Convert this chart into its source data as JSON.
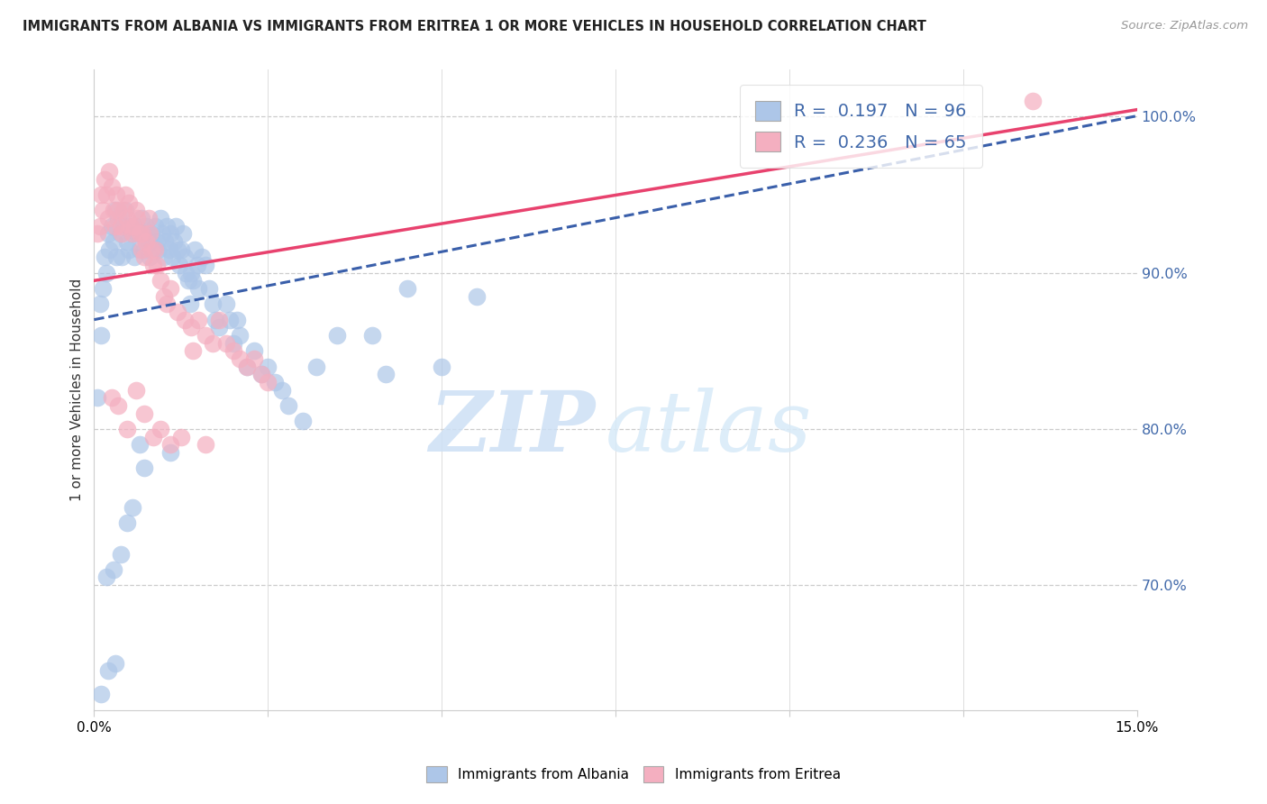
{
  "title": "IMMIGRANTS FROM ALBANIA VS IMMIGRANTS FROM ERITREA 1 OR MORE VEHICLES IN HOUSEHOLD CORRELATION CHART",
  "source": "Source: ZipAtlas.com",
  "ylabel": "1 or more Vehicles in Household",
  "xlim": [
    0.0,
    15.0
  ],
  "ylim": [
    62.0,
    103.0
  ],
  "albania_R": 0.197,
  "albania_N": 96,
  "eritrea_R": 0.236,
  "eritrea_N": 65,
  "albania_color": "#adc6e8",
  "eritrea_color": "#f4afc0",
  "albania_line_color": "#3a5faa",
  "eritrea_line_color": "#e8426e",
  "watermark_zip": "ZIP",
  "watermark_atlas": "atlas",
  "legend_albania_label": "Immigrants from Albania",
  "legend_eritrea_label": "Immigrants from Eritrea",
  "ytick_vals": [
    70.0,
    80.0,
    90.0,
    100.0
  ],
  "xtick_vals": [
    0.0,
    2.5,
    5.0,
    7.5,
    10.0,
    12.5,
    15.0
  ],
  "albania_x": [
    0.05,
    0.08,
    0.1,
    0.12,
    0.15,
    0.18,
    0.2,
    0.22,
    0.25,
    0.28,
    0.3,
    0.32,
    0.35,
    0.38,
    0.4,
    0.42,
    0.45,
    0.48,
    0.5,
    0.52,
    0.55,
    0.58,
    0.6,
    0.62,
    0.65,
    0.68,
    0.7,
    0.72,
    0.75,
    0.78,
    0.8,
    0.82,
    0.85,
    0.88,
    0.9,
    0.92,
    0.95,
    0.98,
    1.0,
    1.02,
    1.05,
    1.08,
    1.1,
    1.12,
    1.15,
    1.18,
    1.2,
    1.22,
    1.25,
    1.28,
    1.3,
    1.32,
    1.35,
    1.38,
    1.4,
    1.42,
    1.45,
    1.48,
    1.5,
    1.55,
    1.6,
    1.65,
    1.7,
    1.75,
    1.8,
    1.9,
    1.95,
    2.0,
    2.05,
    2.1,
    2.2,
    2.3,
    2.4,
    2.5,
    2.6,
    2.7,
    2.8,
    3.0,
    3.2,
    3.5,
    4.0,
    4.2,
    4.5,
    5.0,
    5.5,
    1.1,
    0.65,
    0.72,
    0.55,
    0.48,
    0.38,
    0.28,
    0.18,
    0.1,
    0.2,
    0.3
  ],
  "albania_y": [
    82.0,
    88.0,
    86.0,
    89.0,
    91.0,
    90.0,
    92.5,
    91.5,
    93.0,
    92.0,
    94.0,
    91.0,
    93.5,
    92.5,
    91.0,
    93.0,
    94.0,
    92.0,
    91.5,
    93.0,
    92.5,
    91.0,
    93.0,
    92.5,
    91.5,
    93.5,
    92.5,
    91.5,
    93.0,
    92.0,
    91.0,
    92.5,
    91.5,
    93.0,
    92.0,
    91.5,
    93.5,
    92.5,
    91.0,
    92.0,
    93.0,
    91.5,
    92.5,
    91.0,
    92.0,
    93.0,
    91.5,
    90.5,
    91.5,
    92.5,
    91.0,
    90.0,
    89.5,
    88.0,
    90.0,
    89.5,
    91.5,
    90.5,
    89.0,
    91.0,
    90.5,
    89.0,
    88.0,
    87.0,
    86.5,
    88.0,
    87.0,
    85.5,
    87.0,
    86.0,
    84.0,
    85.0,
    83.5,
    84.0,
    83.0,
    82.5,
    81.5,
    80.5,
    84.0,
    86.0,
    86.0,
    83.5,
    89.0,
    84.0,
    88.5,
    78.5,
    79.0,
    77.5,
    75.0,
    74.0,
    72.0,
    71.0,
    70.5,
    63.0,
    64.5,
    65.0
  ],
  "eritrea_x": [
    0.05,
    0.08,
    0.1,
    0.12,
    0.15,
    0.18,
    0.2,
    0.22,
    0.25,
    0.28,
    0.3,
    0.32,
    0.35,
    0.38,
    0.4,
    0.42,
    0.45,
    0.48,
    0.5,
    0.52,
    0.55,
    0.58,
    0.6,
    0.62,
    0.65,
    0.68,
    0.7,
    0.72,
    0.75,
    0.78,
    0.8,
    0.82,
    0.85,
    0.88,
    0.9,
    0.95,
    1.0,
    1.05,
    1.1,
    1.2,
    1.3,
    1.4,
    1.5,
    1.6,
    1.7,
    1.8,
    1.9,
    2.0,
    2.1,
    2.2,
    2.3,
    2.4,
    2.5,
    0.25,
    0.35,
    0.48,
    0.6,
    0.72,
    0.85,
    0.95,
    1.1,
    1.25,
    1.42,
    1.6,
    13.5
  ],
  "eritrea_y": [
    92.5,
    93.0,
    95.0,
    94.0,
    96.0,
    95.0,
    93.5,
    96.5,
    95.5,
    94.0,
    93.0,
    95.0,
    94.0,
    93.0,
    92.5,
    94.0,
    95.0,
    93.5,
    94.5,
    93.0,
    92.5,
    93.0,
    94.0,
    93.5,
    92.5,
    91.5,
    92.5,
    91.0,
    92.0,
    93.5,
    92.5,
    91.5,
    90.5,
    91.5,
    90.5,
    89.5,
    88.5,
    88.0,
    89.0,
    87.5,
    87.0,
    86.5,
    87.0,
    86.0,
    85.5,
    87.0,
    85.5,
    85.0,
    84.5,
    84.0,
    84.5,
    83.5,
    83.0,
    82.0,
    81.5,
    80.0,
    82.5,
    81.0,
    79.5,
    80.0,
    79.0,
    79.5,
    85.0,
    79.0,
    101.0
  ]
}
